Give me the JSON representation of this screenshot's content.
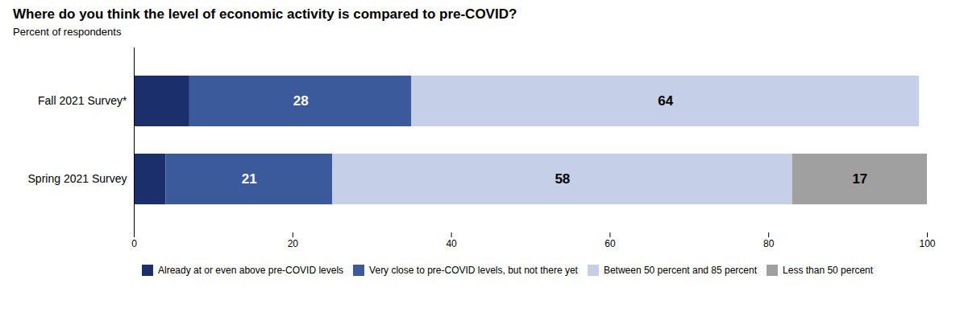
{
  "chart_data": {
    "type": "bar",
    "orientation": "horizontal",
    "stacked": true,
    "title": "Where do you think the level of economic activity is compared to pre-COVID?",
    "subtitle": "Percent of respondents",
    "categories": [
      "Spring 2021 Survey",
      "Fall 2021 Survey*"
    ],
    "series": [
      {
        "name": "Already at or even above pre-COVID levels",
        "color": "#1a2f6b",
        "values": [
          4,
          7
        ],
        "data_labels": false
      },
      {
        "name": "Very close to pre-COVID levels, but not there yet",
        "color": "#3a5a9b",
        "values": [
          21,
          28
        ],
        "data_labels": true
      },
      {
        "name": "Between 50 percent and 85 percent",
        "color": "#c5cfe8",
        "values": [
          58,
          64
        ],
        "data_labels": true
      },
      {
        "name": "Less than 50 percent",
        "color": "#a0a0a0",
        "values": [
          17,
          0
        ],
        "data_labels": true
      }
    ],
    "xlim": [
      0,
      100
    ],
    "xticks": [
      0,
      20,
      40,
      60,
      80,
      100
    ],
    "grid": false,
    "legend": "bottom"
  }
}
